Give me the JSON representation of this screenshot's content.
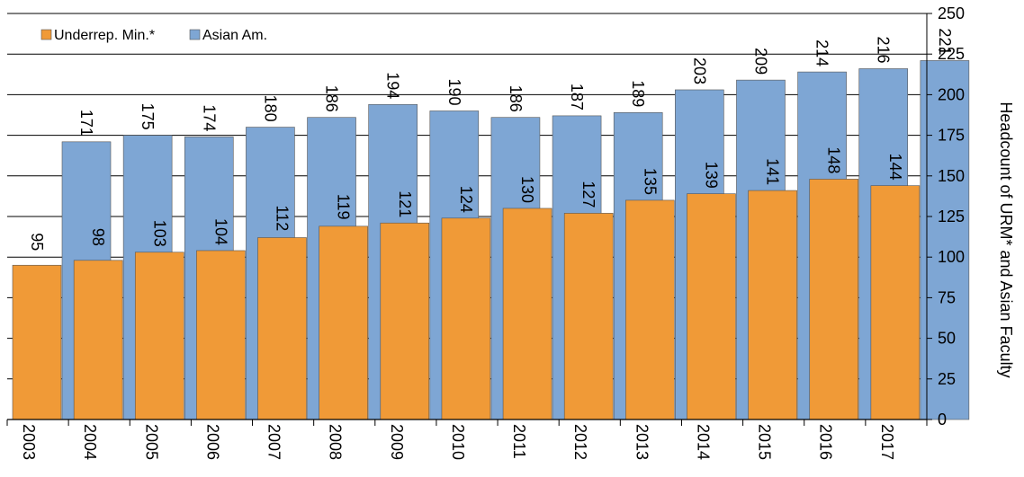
{
  "chart_data": {
    "type": "bar",
    "categories": [
      "2003",
      "2004",
      "2005",
      "2006",
      "2007",
      "2008",
      "2009",
      "2010",
      "2011",
      "2012",
      "2013",
      "2014",
      "2015",
      "2016",
      "2017"
    ],
    "series": [
      {
        "name": "Underrep. Min.*",
        "color": "#f09a37",
        "values": [
          95,
          98,
          103,
          104,
          112,
          119,
          121,
          124,
          130,
          127,
          135,
          139,
          141,
          148,
          144
        ]
      },
      {
        "name": "Asian Am.",
        "color": "#7ea6d4",
        "values": [
          171,
          175,
          174,
          180,
          186,
          194,
          190,
          186,
          187,
          189,
          203,
          209,
          214,
          216,
          221
        ]
      }
    ],
    "ylabel": "Headcount of URM* and Asian Faculty",
    "ylim": [
      0,
      250
    ],
    "yticks": [
      0,
      25,
      50,
      75,
      100,
      125,
      150,
      175,
      200,
      225,
      250
    ],
    "y_axis_side": "right",
    "grid": true,
    "legend_position": "top-left"
  }
}
